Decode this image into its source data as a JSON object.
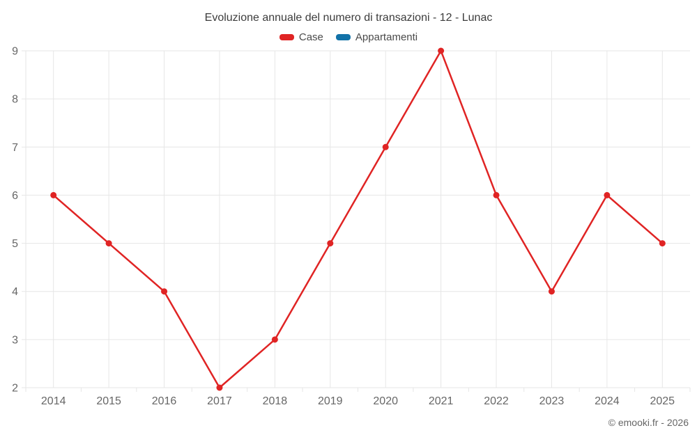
{
  "chart_data": {
    "type": "line",
    "title": "Evoluzione annuale del numero di transazioni - 12 - Lunac",
    "categories": [
      "2014",
      "2015",
      "2016",
      "2017",
      "2018",
      "2019",
      "2020",
      "2021",
      "2022",
      "2023",
      "2024",
      "2025"
    ],
    "series": [
      {
        "name": "Case",
        "color": "#e02424",
        "values": [
          6,
          5,
          4,
          2,
          3,
          5,
          7,
          9,
          6,
          4,
          6,
          5
        ]
      },
      {
        "name": "Appartamenti",
        "color": "#1272a8",
        "values": []
      }
    ],
    "xlabel": "",
    "ylabel": "",
    "ylim": [
      2,
      9
    ],
    "yticks": [
      2,
      3,
      4,
      5,
      6,
      7,
      8,
      9
    ],
    "grid": true,
    "legend_position": "top",
    "grid_color": "#e6e6e6",
    "label_color": "#666666",
    "title_color": "#3c3c3c"
  },
  "footer": {
    "copyright": "© emooki.fr - 2026"
  }
}
